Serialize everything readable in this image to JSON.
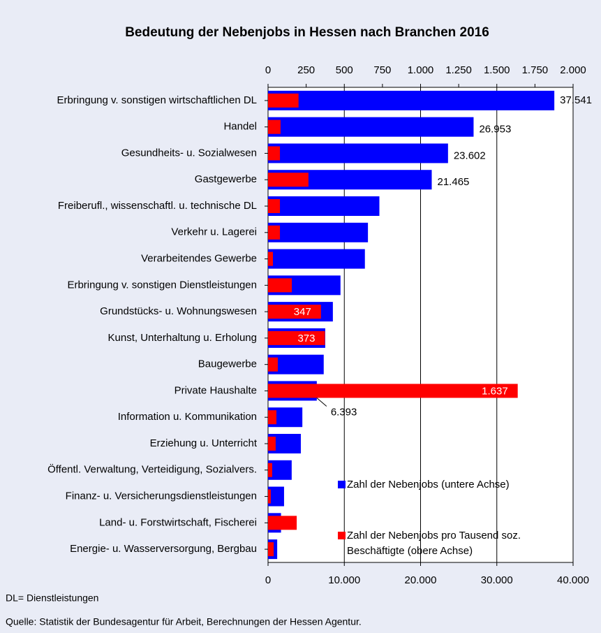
{
  "chart_data": {
    "type": "hbar",
    "title": "Bedeutung der Nebenjobs in Hessen nach Branchen 2016",
    "categories": [
      "Erbringung v. sonstigen wirtschaftlichen DL",
      "Handel",
      "Gesundheits- u. Sozialwesen",
      "Gastgewerbe",
      "Freiberufl., wissenschaftl. u. technische DL",
      "Verkehr u. Lagerei",
      "Verarbeitendes Gewerbe",
      "Erbringung v. sonstigen Dienstleistungen",
      "Grundstücks- u. Wohnungswesen",
      "Kunst, Unterhaltung u. Erholung",
      "Baugewerbe",
      "Private Haushalte",
      "Information u. Kommunikation",
      "Erziehung u. Unterricht",
      "Öffentl. Verwaltung, Verteidigung, Sozialvers.",
      "Finanz- u. Versicherungsdienstleistungen",
      "Land- u. Forstwirtschaft, Fischerei",
      "Energie- u. Wasserversorgung, Bergbau"
    ],
    "series": [
      {
        "name": "Zahl der Nebenjobs (untere Achse)",
        "color": "#0000ff",
        "axis": "x",
        "values": [
          37541,
          26953,
          23602,
          21465,
          14600,
          13100,
          12700,
          9500,
          8500,
          7500,
          7300,
          6393,
          4500,
          4300,
          3100,
          2100,
          1700,
          1200
        ],
        "value_labels": [
          "37.541",
          "26.953",
          "23.602",
          "21.465",
          null,
          null,
          null,
          null,
          null,
          null,
          null,
          "6.393",
          null,
          null,
          null,
          null,
          null,
          null
        ]
      },
      {
        "name": "Zahl der Nebenjobs pro Tausend soz. Beschäftigte (obere Achse)",
        "color": "#ff0000",
        "axis": "x2",
        "values": [
          200,
          82,
          78,
          265,
          78,
          78,
          32,
          156,
          347,
          373,
          64,
          1637,
          55,
          50,
          27,
          18,
          188,
          37
        ],
        "value_labels": [
          null,
          null,
          null,
          null,
          null,
          null,
          null,
          null,
          "347",
          "373",
          null,
          "1.637",
          null,
          null,
          null,
          null,
          null,
          null
        ]
      }
    ],
    "xlim": [
      0,
      40000
    ],
    "xticks": [
      0,
      {
        "value": 10000,
        "label": "10.000"
      },
      {
        "value": 20000,
        "label": "20.000"
      },
      {
        "value": 30000,
        "label": "30.000"
      },
      {
        "value": 40000,
        "label": "40.000"
      }
    ],
    "x2lim": [
      0,
      2000
    ],
    "x2ticks": [
      0,
      250,
      500,
      750,
      {
        "value": 1000,
        "label": "1.000"
      },
      {
        "value": 1250,
        "label": "1.250"
      },
      {
        "value": 1500,
        "label": "1.500"
      },
      {
        "value": 1750,
        "label": "1.750"
      },
      {
        "value": 2000,
        "label": "2.000"
      }
    ],
    "grid": true,
    "notes": [
      "DL= Dienstleistungen",
      "Quelle: Statistik der Bundesagentur für Arbeit, Berechnungen der Hessen Agentur."
    ]
  }
}
